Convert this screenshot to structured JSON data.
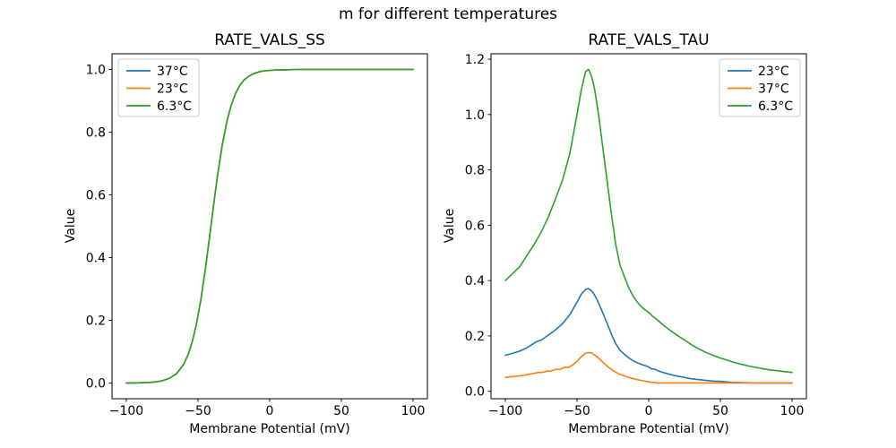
{
  "figure": {
    "suptitle": "m for different temperatures",
    "background": "#ffffff"
  },
  "palette": {
    "blue": "#1f77b4",
    "orange": "#ff7f0e",
    "green": "#2ca02c"
  },
  "chart_data": [
    {
      "type": "line",
      "title": "RATE_VALS_SS",
      "xlabel": "Membrane Potential (mV)",
      "ylabel": "Value",
      "xlim": [
        -110,
        110
      ],
      "ylim": [
        -0.05,
        1.05
      ],
      "xticks": [
        -100,
        -50,
        0,
        50,
        100
      ],
      "xticklabels": [
        "−100",
        "−50",
        "0",
        "50",
        "100"
      ],
      "yticks": [
        0.0,
        0.2,
        0.4,
        0.6,
        0.8,
        1.0
      ],
      "yticklabels": [
        "0.0",
        "0.2",
        "0.4",
        "0.6",
        "0.8",
        "1.0"
      ],
      "grid": false,
      "legend": {
        "loc": "upper left",
        "width": 90,
        "height": 64,
        "entries": [
          {
            "label": "37°C",
            "color": "#1f77b4"
          },
          {
            "label": "23°C",
            "color": "#ff7f0e"
          },
          {
            "label": "6.3°C",
            "color": "#2ca02c"
          }
        ]
      },
      "note": "All three temperature curves are identical sigmoids and overlap exactly; the green 6.3°C curve is drawn on top.",
      "series": [
        {
          "name": "37°C",
          "color": "#1f77b4",
          "x": [
            -100,
            -95,
            -90,
            -85,
            -80,
            -75,
            -70,
            -65,
            -60,
            -57,
            -54,
            -51,
            -48,
            -45,
            -42,
            -39,
            -36,
            -33,
            -30,
            -27,
            -24,
            -21,
            -18,
            -15,
            -12,
            -9,
            -6,
            -3,
            0,
            5,
            10,
            20,
            30,
            40,
            50,
            60,
            70,
            80,
            90,
            100
          ],
          "y": [
            0.0003,
            0.0004,
            0.0008,
            0.0017,
            0.0035,
            0.0072,
            0.0148,
            0.0298,
            0.0598,
            0.0896,
            0.132,
            0.19,
            0.266,
            0.359,
            0.464,
            0.572,
            0.674,
            0.761,
            0.831,
            0.884,
            0.922,
            0.948,
            0.966,
            0.977,
            0.985,
            0.99,
            0.994,
            0.996,
            0.997,
            0.999,
            0.999,
            1.0,
            1.0,
            1.0,
            1.0,
            1.0,
            1.0,
            1.0,
            1.0,
            1.0
          ]
        },
        {
          "name": "23°C",
          "color": "#ff7f0e",
          "x": [
            -100,
            -95,
            -90,
            -85,
            -80,
            -75,
            -70,
            -65,
            -60,
            -57,
            -54,
            -51,
            -48,
            -45,
            -42,
            -39,
            -36,
            -33,
            -30,
            -27,
            -24,
            -21,
            -18,
            -15,
            -12,
            -9,
            -6,
            -3,
            0,
            5,
            10,
            20,
            30,
            40,
            50,
            60,
            70,
            80,
            90,
            100
          ],
          "y": [
            0.0003,
            0.0004,
            0.0008,
            0.0017,
            0.0035,
            0.0072,
            0.0148,
            0.0298,
            0.0598,
            0.0896,
            0.132,
            0.19,
            0.266,
            0.359,
            0.464,
            0.572,
            0.674,
            0.761,
            0.831,
            0.884,
            0.922,
            0.948,
            0.966,
            0.977,
            0.985,
            0.99,
            0.994,
            0.996,
            0.997,
            0.999,
            0.999,
            1.0,
            1.0,
            1.0,
            1.0,
            1.0,
            1.0,
            1.0,
            1.0,
            1.0
          ]
        },
        {
          "name": "6.3°C",
          "color": "#2ca02c",
          "x": [
            -100,
            -95,
            -90,
            -85,
            -80,
            -75,
            -70,
            -65,
            -60,
            -57,
            -54,
            -51,
            -48,
            -45,
            -42,
            -39,
            -36,
            -33,
            -30,
            -27,
            -24,
            -21,
            -18,
            -15,
            -12,
            -9,
            -6,
            -3,
            0,
            5,
            10,
            20,
            30,
            40,
            50,
            60,
            70,
            80,
            90,
            100
          ],
          "y": [
            0.0003,
            0.0004,
            0.0008,
            0.0017,
            0.0035,
            0.0072,
            0.0148,
            0.0298,
            0.0598,
            0.0896,
            0.132,
            0.19,
            0.266,
            0.359,
            0.464,
            0.572,
            0.674,
            0.761,
            0.831,
            0.884,
            0.922,
            0.948,
            0.966,
            0.977,
            0.985,
            0.99,
            0.994,
            0.996,
            0.997,
            0.999,
            0.999,
            1.0,
            1.0,
            1.0,
            1.0,
            1.0,
            1.0,
            1.0,
            1.0,
            1.0
          ]
        }
      ]
    },
    {
      "type": "line",
      "title": "RATE_VALS_TAU",
      "xlabel": "Membrane Potential (mV)",
      "ylabel": "Value",
      "xlim": [
        -110,
        110
      ],
      "ylim": [
        -0.0269,
        1.2196
      ],
      "xticks": [
        -100,
        -50,
        0,
        50,
        100
      ],
      "xticklabels": [
        "−100",
        "−50",
        "0",
        "50",
        "100"
      ],
      "yticks": [
        0.0,
        0.2,
        0.4,
        0.6,
        0.8,
        1.0,
        1.2
      ],
      "yticklabels": [
        "0.0",
        "0.2",
        "0.4",
        "0.6",
        "0.8",
        "1.0",
        "1.2"
      ],
      "grid": false,
      "legend": {
        "loc": "upper right",
        "width": 90,
        "height": 64,
        "entries": [
          {
            "label": "23°C",
            "color": "#1f77b4"
          },
          {
            "label": "37°C",
            "color": "#ff7f0e"
          },
          {
            "label": "6.3°C",
            "color": "#2ca02c"
          }
        ]
      },
      "note": "Bell-shaped tau curves peaking near −43 mV: green 6.3°C peak ≈1.16, blue 23°C peak ≈0.37, orange 37°C peak ≈0.14; blue and orange flatten at ≈0.03 on the right.",
      "series": [
        {
          "name": "23°C",
          "color": "#1f77b4",
          "x": [
            -100,
            -95,
            -90,
            -85,
            -81,
            -78,
            -75,
            -70,
            -65,
            -60,
            -55,
            -50,
            -47,
            -44,
            -42,
            -40,
            -38,
            -35,
            -32,
            -29,
            -26,
            -23,
            -20,
            -17,
            -14,
            -11,
            -8,
            -5,
            -2,
            0,
            2,
            4,
            7,
            10,
            14,
            18,
            22,
            26,
            30,
            35,
            40,
            45,
            50,
            54,
            58,
            65,
            75,
            85,
            100
          ],
          "y": [
            0.13,
            0.137,
            0.145,
            0.157,
            0.17,
            0.18,
            0.185,
            0.203,
            0.222,
            0.245,
            0.277,
            0.322,
            0.351,
            0.368,
            0.371,
            0.364,
            0.35,
            0.32,
            0.283,
            0.245,
            0.207,
            0.172,
            0.148,
            0.134,
            0.121,
            0.111,
            0.103,
            0.097,
            0.092,
            0.088,
            0.081,
            0.08,
            0.073,
            0.068,
            0.062,
            0.057,
            0.053,
            0.049,
            0.045,
            0.042,
            0.039,
            0.037,
            0.036,
            0.034,
            0.032,
            0.031,
            0.03,
            0.03,
            0.03
          ]
        },
        {
          "name": "37°C",
          "color": "#ff7f0e",
          "x": [
            -100,
            -95,
            -90,
            -85,
            -80,
            -77,
            -74,
            -71,
            -68,
            -65,
            -62,
            -59,
            -56,
            -53,
            -50,
            -47,
            -44,
            -42,
            -40,
            -38,
            -35,
            -32,
            -29,
            -26,
            -23,
            -20,
            -17,
            -14,
            -11,
            -8,
            -5,
            -2,
            0,
            2,
            4,
            6,
            10,
            20,
            30,
            40,
            50,
            60,
            70,
            80,
            90,
            100
          ],
          "y": [
            0.05,
            0.053,
            0.056,
            0.06,
            0.065,
            0.068,
            0.068,
            0.073,
            0.073,
            0.079,
            0.079,
            0.086,
            0.086,
            0.095,
            0.108,
            0.125,
            0.138,
            0.14,
            0.139,
            0.132,
            0.12,
            0.105,
            0.091,
            0.079,
            0.069,
            0.061,
            0.056,
            0.05,
            0.046,
            0.042,
            0.039,
            0.036,
            0.034,
            0.032,
            0.032,
            0.03,
            0.03,
            0.03,
            0.03,
            0.03,
            0.03,
            0.03,
            0.03,
            0.03,
            0.03,
            0.03
          ]
        },
        {
          "name": "6.3°C",
          "color": "#2ca02c",
          "x": [
            -100,
            -95,
            -90,
            -85,
            -80,
            -75,
            -70,
            -65,
            -60,
            -55,
            -50,
            -47,
            -44,
            -42,
            -40,
            -38,
            -35,
            -32,
            -29,
            -26,
            -23,
            -20,
            -17,
            -14,
            -11,
            -8,
            -5,
            -2,
            0,
            3,
            6,
            10,
            15,
            20,
            25,
            30,
            35,
            40,
            45,
            50,
            55,
            60,
            65,
            70,
            75,
            80,
            85,
            90,
            95,
            100
          ],
          "y": [
            0.4,
            0.425,
            0.45,
            0.49,
            0.53,
            0.575,
            0.63,
            0.695,
            0.765,
            0.86,
            1.0,
            1.09,
            1.155,
            1.163,
            1.14,
            1.1,
            1.0,
            0.88,
            0.76,
            0.64,
            0.53,
            0.455,
            0.415,
            0.375,
            0.345,
            0.322,
            0.305,
            0.292,
            0.285,
            0.27,
            0.258,
            0.24,
            0.22,
            0.202,
            0.185,
            0.168,
            0.153,
            0.14,
            0.13,
            0.12,
            0.112,
            0.104,
            0.097,
            0.091,
            0.086,
            0.081,
            0.077,
            0.074,
            0.071,
            0.068
          ]
        }
      ]
    }
  ]
}
